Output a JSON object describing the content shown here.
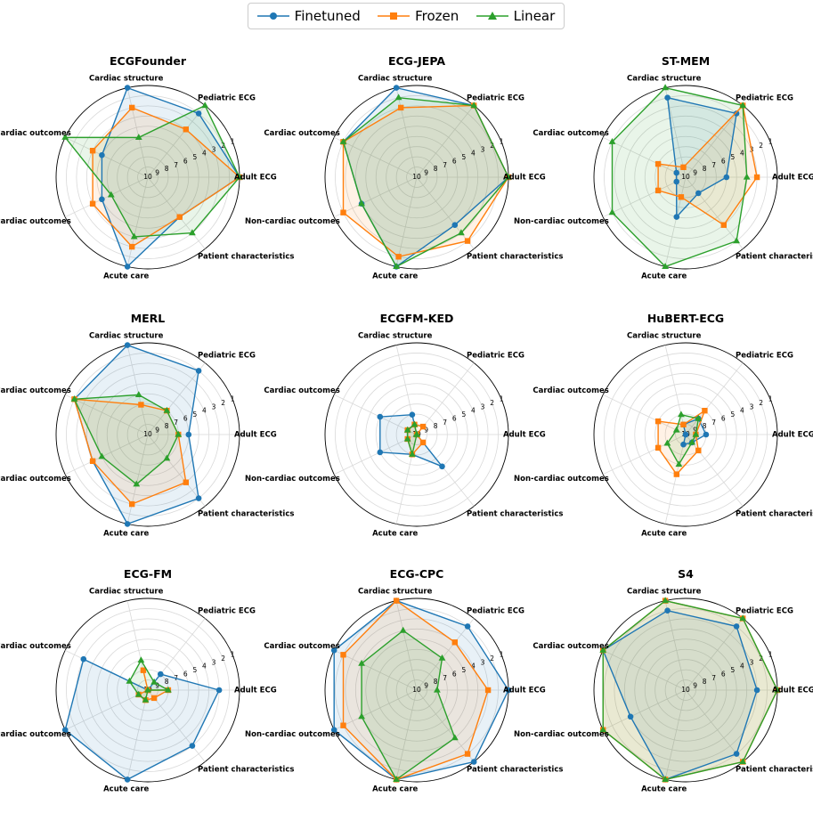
{
  "legend": [
    {
      "name": "Finetuned",
      "color": "#1f77b4",
      "marker": "circle"
    },
    {
      "name": "Frozen",
      "color": "#ff7f0e",
      "marker": "square"
    },
    {
      "name": "Linear",
      "color": "#2ca02c",
      "marker": "triangle"
    }
  ],
  "axis_labels": [
    "Adult ECG",
    "Pediatric ECG",
    "Cardiac structure",
    "Cardiac outcomes",
    "Non-cardiac outcomes",
    "Acute care",
    "Patient characteristics"
  ],
  "tick_labels": [
    "1",
    "2",
    "3",
    "4",
    "5",
    "6",
    "7",
    "8",
    "9",
    "10"
  ],
  "chart_data": [
    {
      "type": "radar",
      "title": "ECGFounder",
      "categories": [
        "Adult ECG",
        "Pediatric ECG",
        "Cardiac structure",
        "Cardiac outcomes",
        "Non-cardiac outcomes",
        "Acute care",
        "Patient characteristics"
      ],
      "rrange": [
        10,
        1
      ],
      "series": [
        {
          "name": "Finetuned",
          "values": [
            1,
            2,
            1,
            5,
            5,
            1,
            5
          ]
        },
        {
          "name": "Frozen",
          "values": [
            1,
            4,
            3,
            4,
            4,
            3,
            5
          ]
        },
        {
          "name": "Linear",
          "values": [
            1,
            1,
            6,
            1,
            6,
            4,
            3
          ]
        }
      ]
    },
    {
      "type": "radar",
      "title": "ECG-JEPA",
      "categories": [
        "Adult ECG",
        "Pediatric ECG",
        "Cardiac structure",
        "Cardiac outcomes",
        "Non-cardiac outcomes",
        "Acute care",
        "Patient characteristics"
      ],
      "rrange": [
        10,
        1
      ],
      "series": [
        {
          "name": "Finetuned",
          "values": [
            1,
            1,
            1,
            2,
            4,
            1,
            4
          ]
        },
        {
          "name": "Frozen",
          "values": [
            1,
            1,
            3,
            2,
            2,
            2,
            2
          ]
        },
        {
          "name": "Linear",
          "values": [
            1,
            1,
            2,
            2,
            4,
            1,
            3
          ]
        }
      ]
    },
    {
      "type": "radar",
      "title": "ST-MEM",
      "categories": [
        "Adult ECG",
        "Pediatric ECG",
        "Cardiac structure",
        "Cardiac outcomes",
        "Non-cardiac outcomes",
        "Acute care",
        "Patient characteristics"
      ],
      "rrange": [
        10,
        1
      ],
      "series": [
        {
          "name": "Finetuned",
          "values": [
            6,
            2,
            2,
            9,
            9,
            6,
            8
          ]
        },
        {
          "name": "Frozen",
          "values": [
            3,
            1,
            9,
            7,
            7,
            8,
            4
          ]
        },
        {
          "name": "Linear",
          "values": [
            4,
            1,
            1,
            2,
            2,
            1,
            2
          ]
        }
      ]
    },
    {
      "type": "radar",
      "title": "MERL",
      "categories": [
        "Adult ECG",
        "Pediatric ECG",
        "Cardiac structure",
        "Cardiac outcomes",
        "Non-cardiac outcomes",
        "Acute care",
        "Patient characteristics"
      ],
      "rrange": [
        10,
        1
      ],
      "series": [
        {
          "name": "Finetuned",
          "values": [
            6,
            2,
            1,
            2,
            4,
            1,
            2
          ]
        },
        {
          "name": "Frozen",
          "values": [
            7,
            7,
            7,
            2,
            4,
            3,
            4
          ]
        },
        {
          "name": "Linear",
          "values": [
            7,
            7,
            6,
            2,
            5,
            5,
            7
          ]
        }
      ]
    },
    {
      "type": "radar",
      "title": "ECGFM-KED",
      "categories": [
        "Adult ECG",
        "Pediatric ECG",
        "Cardiac structure",
        "Cardiac outcomes",
        "Non-cardiac outcomes",
        "Acute care",
        "Patient characteristics"
      ],
      "rrange": [
        10,
        1
      ],
      "series": [
        {
          "name": "Finetuned",
          "values": [
            10,
            10,
            8,
            6,
            6,
            8,
            6
          ]
        },
        {
          "name": "Frozen",
          "values": [
            10,
            9,
            9,
            9,
            9,
            8,
            9
          ]
        },
        {
          "name": "Linear",
          "values": [
            10,
            10,
            9,
            9,
            9,
            8,
            10
          ]
        }
      ]
    },
    {
      "type": "radar",
      "title": "HuBERT-ECG",
      "categories": [
        "Adult ECG",
        "Pediatric ECG",
        "Cardiac structure",
        "Cardiac outcomes",
        "Non-cardiac outcomes",
        "Acute care",
        "Patient characteristics"
      ],
      "rrange": [
        10,
        1
      ],
      "series": [
        {
          "name": "Finetuned",
          "values": [
            8,
            8,
            9,
            10,
            10,
            9,
            9
          ]
        },
        {
          "name": "Frozen",
          "values": [
            9,
            7,
            9,
            7,
            7,
            6,
            8
          ]
        },
        {
          "name": "Linear",
          "values": [
            9,
            8,
            8,
            9,
            8,
            7,
            9
          ]
        }
      ]
    },
    {
      "type": "radar",
      "title": "ECG-FM",
      "categories": [
        "Adult ECG",
        "Pediatric ECG",
        "Cardiac structure",
        "Cardiac outcomes",
        "Non-cardiac outcomes",
        "Acute care",
        "Patient characteristics"
      ],
      "rrange": [
        10,
        1
      ],
      "series": [
        {
          "name": "Finetuned",
          "values": [
            3,
            8,
            10,
            3,
            1,
            1,
            3
          ]
        },
        {
          "name": "Frozen",
          "values": [
            8,
            10,
            8,
            10,
            9,
            9,
            9
          ]
        },
        {
          "name": "Linear",
          "values": [
            8,
            9,
            7,
            8,
            9,
            9,
            10
          ]
        }
      ]
    },
    {
      "type": "radar",
      "title": "ECG-CPC",
      "categories": [
        "Adult ECG",
        "Pediatric ECG",
        "Cardiac structure",
        "Cardiac outcomes",
        "Non-cardiac outcomes",
        "Acute care",
        "Patient characteristics"
      ],
      "rrange": [
        10,
        1
      ],
      "series": [
        {
          "name": "Finetuned",
          "values": [
            1,
            2,
            1,
            1,
            1,
            1,
            1
          ]
        },
        {
          "name": "Frozen",
          "values": [
            3,
            4,
            1,
            2,
            2,
            1,
            2
          ]
        },
        {
          "name": "Linear",
          "values": [
            8,
            6,
            4,
            4,
            4,
            1,
            4
          ]
        }
      ]
    },
    {
      "type": "radar",
      "title": "S4",
      "categories": [
        "Adult ECG",
        "Pediatric ECG",
        "Cardiac structure",
        "Cardiac outcomes",
        "Non-cardiac outcomes",
        "Acute care",
        "Patient characteristics"
      ],
      "rrange": [
        10,
        1
      ],
      "series": [
        {
          "name": "Finetuned",
          "values": [
            3,
            2,
            2,
            1,
            4,
            1,
            2
          ]
        },
        {
          "name": "Frozen",
          "values": [
            1,
            1,
            1,
            1,
            1,
            1,
            1
          ]
        },
        {
          "name": "Linear",
          "values": [
            1,
            1,
            1,
            1,
            1,
            1,
            1
          ]
        }
      ]
    }
  ]
}
